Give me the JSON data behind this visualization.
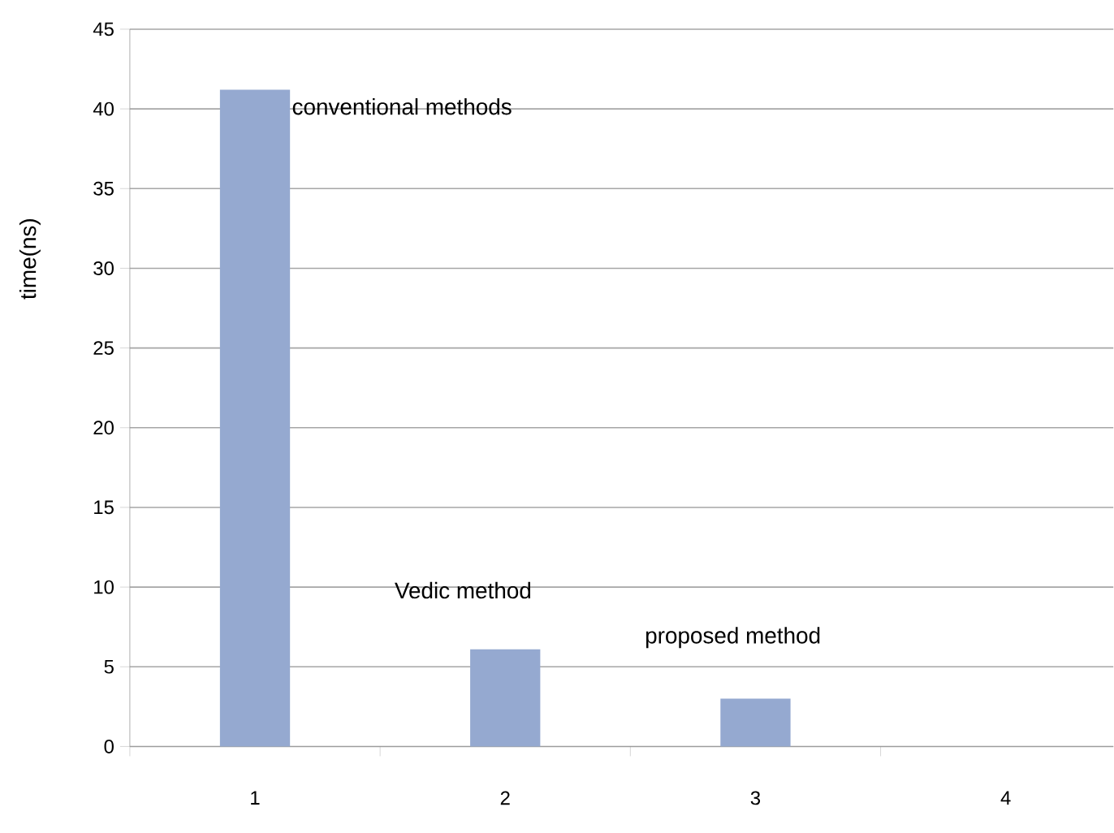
{
  "chart_data": {
    "type": "bar",
    "ylabel": "time(ns)",
    "categories": [
      "1",
      "2",
      "3",
      "4"
    ],
    "values": [
      41.2,
      6.1,
      3.0,
      null
    ],
    "color": "#95a9d0",
    "ylim": [
      0,
      45
    ],
    "yticks": [
      0,
      5,
      10,
      15,
      20,
      25,
      30,
      35,
      40,
      45
    ],
    "grid": "y",
    "annotations": [
      "conventional methods",
      "Vedic method",
      "proposed method"
    ]
  }
}
